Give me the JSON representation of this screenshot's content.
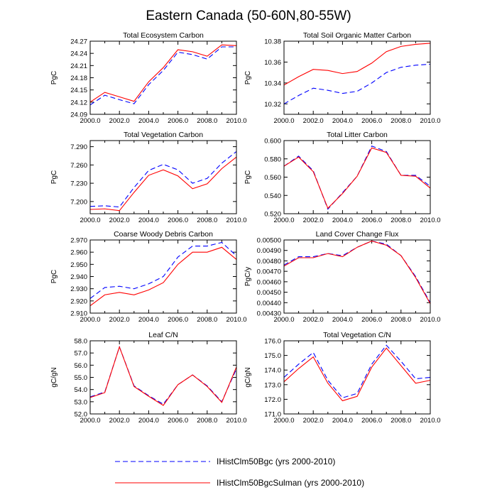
{
  "title": "Eastern Canada (50-60N,80-55W)",
  "colors": {
    "series1": "#0000ff",
    "series2": "#ff0000",
    "axis": "#000000"
  },
  "legend": [
    {
      "label": "IHistClm50Bgc (yrs 2000-2010)",
      "color": "#0000ff",
      "dash": "dashed"
    },
    {
      "label": "IHistClm50BgcSulman (yrs 2000-2010)",
      "color": "#ff0000",
      "dash": "solid"
    }
  ],
  "chart_data": [
    {
      "type": "line",
      "title": "Total Ecosystem Carbon",
      "ylabel": "PgC",
      "xlim": [
        2000,
        2010
      ],
      "ylim": [
        24.09,
        24.27
      ],
      "xticks": [
        "2000.0",
        "2002.0",
        "2004.0",
        "2006.0",
        "2008.0",
        "2010.0"
      ],
      "yticks": [
        24.09,
        24.12,
        24.15,
        24.18,
        24.21,
        24.24,
        24.27
      ],
      "yticklabels": [
        "24.09",
        "24.12",
        "24.15",
        "24.18",
        "24.21",
        "24.24",
        "24.27"
      ],
      "x": [
        2000,
        2001,
        2002,
        2003,
        2004,
        2005,
        2006,
        2007,
        2008,
        2009,
        2010
      ],
      "series": [
        {
          "name": "IHistClm50Bgc (yrs 2000-2010)",
          "values": [
            24.113,
            24.137,
            24.126,
            24.116,
            24.163,
            24.198,
            24.243,
            24.237,
            24.226,
            24.256,
            24.256
          ]
        },
        {
          "name": "IHistClm50BgcSulman (yrs 2000-2010)",
          "values": [
            24.12,
            24.144,
            24.133,
            24.122,
            24.17,
            24.205,
            24.249,
            24.244,
            24.233,
            24.261,
            24.259
          ]
        }
      ]
    },
    {
      "type": "line",
      "title": "Total Soil Organic Matter Carbon",
      "ylabel": "PgC",
      "xlim": [
        2000,
        2010
      ],
      "ylim": [
        10.31,
        10.38
      ],
      "xticks": [
        "2000.0",
        "2002.0",
        "2004.0",
        "2006.0",
        "2008.0",
        "2010.0"
      ],
      "yticks": [
        10.32,
        10.34,
        10.36,
        10.38
      ],
      "yticklabels": [
        "10.32",
        "10.34",
        "10.36",
        "10.38"
      ],
      "x": [
        2000,
        2001,
        2002,
        2003,
        2004,
        2005,
        2006,
        2007,
        2008,
        2009,
        2010
      ],
      "series": [
        {
          "name": "IHistClm50Bgc (yrs 2000-2010)",
          "values": [
            10.32,
            10.328,
            10.335,
            10.333,
            10.33,
            10.332,
            10.34,
            10.35,
            10.355,
            10.357,
            10.358
          ]
        },
        {
          "name": "IHistClm50BgcSulman (yrs 2000-2010)",
          "values": [
            10.338,
            10.346,
            10.353,
            10.352,
            10.349,
            10.351,
            10.359,
            10.37,
            10.375,
            10.377,
            10.378
          ]
        }
      ]
    },
    {
      "type": "line",
      "title": "Total Vegetation Carbon",
      "ylabel": "PgC",
      "xlim": [
        2000,
        2010
      ],
      "ylim": [
        7.18,
        7.3
      ],
      "xticks": [
        "2000.0",
        "2002.0",
        "2004.0",
        "2006.0",
        "2008.0",
        "2010.0"
      ],
      "yticks": [
        7.2,
        7.23,
        7.26,
        7.29
      ],
      "yticklabels": [
        "7.200",
        "7.230",
        "7.260",
        "7.290"
      ],
      "x": [
        2000,
        2001,
        2002,
        2003,
        2004,
        2005,
        2006,
        2007,
        2008,
        2009,
        2010
      ],
      "series": [
        {
          "name": "IHistClm50Bgc (yrs 2000-2010)",
          "values": [
            7.192,
            7.193,
            7.191,
            7.223,
            7.251,
            7.261,
            7.252,
            7.23,
            7.238,
            7.263,
            7.282
          ]
        },
        {
          "name": "IHistClm50BgcSulman (yrs 2000-2010)",
          "values": [
            7.187,
            7.188,
            7.185,
            7.215,
            7.243,
            7.252,
            7.242,
            7.221,
            7.229,
            7.254,
            7.273
          ]
        }
      ]
    },
    {
      "type": "line",
      "title": "Total Litter Carbon",
      "ylabel": "PgC",
      "xlim": [
        2000,
        2010
      ],
      "ylim": [
        0.52,
        0.6
      ],
      "xticks": [
        "2000.0",
        "2002.0",
        "2004.0",
        "2006.0",
        "2008.0",
        "2010.0"
      ],
      "yticks": [
        0.52,
        0.54,
        0.56,
        0.58,
        0.6
      ],
      "yticklabels": [
        "0.520",
        "0.540",
        "0.560",
        "0.580",
        "0.600"
      ],
      "x": [
        2000,
        2001,
        2002,
        2003,
        2004,
        2005,
        2006,
        2007,
        2008,
        2009,
        2010
      ],
      "series": [
        {
          "name": "IHistClm50Bgc (yrs 2000-2010)",
          "values": [
            0.572,
            0.583,
            0.567,
            0.525,
            0.543,
            0.561,
            0.594,
            0.588,
            0.562,
            0.562,
            0.55
          ]
        },
        {
          "name": "IHistClm50BgcSulman (yrs 2000-2010)",
          "values": [
            0.572,
            0.582,
            0.566,
            0.526,
            0.542,
            0.561,
            0.592,
            0.587,
            0.562,
            0.561,
            0.548
          ]
        }
      ]
    },
    {
      "type": "line",
      "title": "Coarse Woody Debris Carbon",
      "ylabel": "PgC",
      "xlim": [
        2000,
        2010
      ],
      "ylim": [
        2.91,
        2.97
      ],
      "xticks": [
        "2000.0",
        "2002.0",
        "2004.0",
        "2006.0",
        "2008.0",
        "2010.0"
      ],
      "yticks": [
        2.91,
        2.92,
        2.93,
        2.94,
        2.95,
        2.96,
        2.97
      ],
      "yticklabels": [
        "2.910",
        "2.920",
        "2.930",
        "2.940",
        "2.950",
        "2.960",
        "2.970"
      ],
      "x": [
        2000,
        2001,
        2002,
        2003,
        2004,
        2005,
        2006,
        2007,
        2008,
        2009,
        2010
      ],
      "series": [
        {
          "name": "IHistClm50Bgc (yrs 2000-2010)",
          "values": [
            2.922,
            2.931,
            2.932,
            2.93,
            2.934,
            2.94,
            2.956,
            2.965,
            2.965,
            2.968,
            2.957
          ]
        },
        {
          "name": "IHistClm50BgcSulman (yrs 2000-2010)",
          "values": [
            2.916,
            2.925,
            2.927,
            2.925,
            2.929,
            2.935,
            2.95,
            2.96,
            2.96,
            2.964,
            2.954
          ]
        }
      ]
    },
    {
      "type": "line",
      "title": "Land Cover Change Flux",
      "ylabel": "PgC/y",
      "xlim": [
        2000,
        2010
      ],
      "ylim": [
        0.0043,
        0.005
      ],
      "xticks": [
        "2000.0",
        "2002.0",
        "2004.0",
        "2006.0",
        "2008.0",
        "2010.0"
      ],
      "yticks": [
        0.0043,
        0.0044,
        0.0045,
        0.0046,
        0.0047,
        0.0048,
        0.0049,
        0.005
      ],
      "yticklabels": [
        "0.00430",
        "0.00440",
        "0.00450",
        "0.00460",
        "0.00470",
        "0.00480",
        "0.00490",
        "0.00500"
      ],
      "x": [
        2000,
        2001,
        2002,
        2003,
        2004,
        2005,
        2006,
        2007,
        2008,
        2009,
        2010
      ],
      "series": [
        {
          "name": "IHistClm50Bgc (yrs 2000-2010)",
          "values": [
            0.00476,
            0.00484,
            0.00484,
            0.00487,
            0.00485,
            0.00493,
            0.00499,
            0.00496,
            0.00485,
            0.00465,
            0.0044
          ]
        },
        {
          "name": "IHistClm50BgcSulman (yrs 2000-2010)",
          "values": [
            0.00475,
            0.00483,
            0.00483,
            0.00487,
            0.00484,
            0.00493,
            0.00499,
            0.00495,
            0.00485,
            0.00464,
            0.00439
          ]
        }
      ]
    },
    {
      "type": "line",
      "title": "Leaf C/N",
      "ylabel": "gC/gN",
      "xlim": [
        2000,
        2010
      ],
      "ylim": [
        52,
        58
      ],
      "xticks": [
        "2000.0",
        "2002.0",
        "2004.0",
        "2006.0",
        "2008.0",
        "2010.0"
      ],
      "yticks": [
        52,
        53,
        54,
        55,
        56,
        57,
        58
      ],
      "yticklabels": [
        "52.0",
        "53.0",
        "54.0",
        "55.0",
        "56.0",
        "57.0",
        "58.0"
      ],
      "x": [
        2000,
        2001,
        2002,
        2003,
        2004,
        2005,
        2006,
        2007,
        2008,
        2009,
        2010
      ],
      "series": [
        {
          "name": "IHistClm50Bgc (yrs 2000-2010)",
          "values": [
            53.4,
            53.8,
            57.5,
            54.3,
            53.5,
            52.8,
            54.4,
            55.2,
            54.3,
            53,
            55.7
          ]
        },
        {
          "name": "IHistClm50BgcSulman (yrs 2000-2010)",
          "values": [
            53.35,
            53.75,
            57.5,
            54.25,
            53.45,
            52.7,
            54.4,
            55.2,
            54.25,
            52.95,
            55.85
          ]
        }
      ]
    },
    {
      "type": "line",
      "title": "Total Vegetation C/N",
      "ylabel": "gC/gN",
      "xlim": [
        2000,
        2010
      ],
      "ylim": [
        171,
        176
      ],
      "xticks": [
        "2000.0",
        "2002.0",
        "2004.0",
        "2006.0",
        "2008.0",
        "2010.0"
      ],
      "yticks": [
        171,
        172,
        173,
        174,
        175,
        176
      ],
      "yticklabels": [
        "171.0",
        "172.0",
        "173.0",
        "174.0",
        "175.0",
        "176.0"
      ],
      "x": [
        2000,
        2001,
        2002,
        2003,
        2004,
        2005,
        2006,
        2007,
        2008,
        2009,
        2010
      ],
      "series": [
        {
          "name": "IHistClm50Bgc (yrs 2000-2010)",
          "values": [
            173.5,
            174.4,
            175.2,
            173.3,
            172.1,
            172.4,
            174.4,
            175.7,
            174.6,
            173.4,
            173.5
          ]
        },
        {
          "name": "IHistClm50BgcSulman (yrs 2000-2010)",
          "values": [
            173.2,
            174.1,
            174.9,
            173.1,
            171.9,
            172.2,
            174.2,
            175.5,
            174.3,
            173.1,
            173.3
          ]
        }
      ]
    }
  ]
}
